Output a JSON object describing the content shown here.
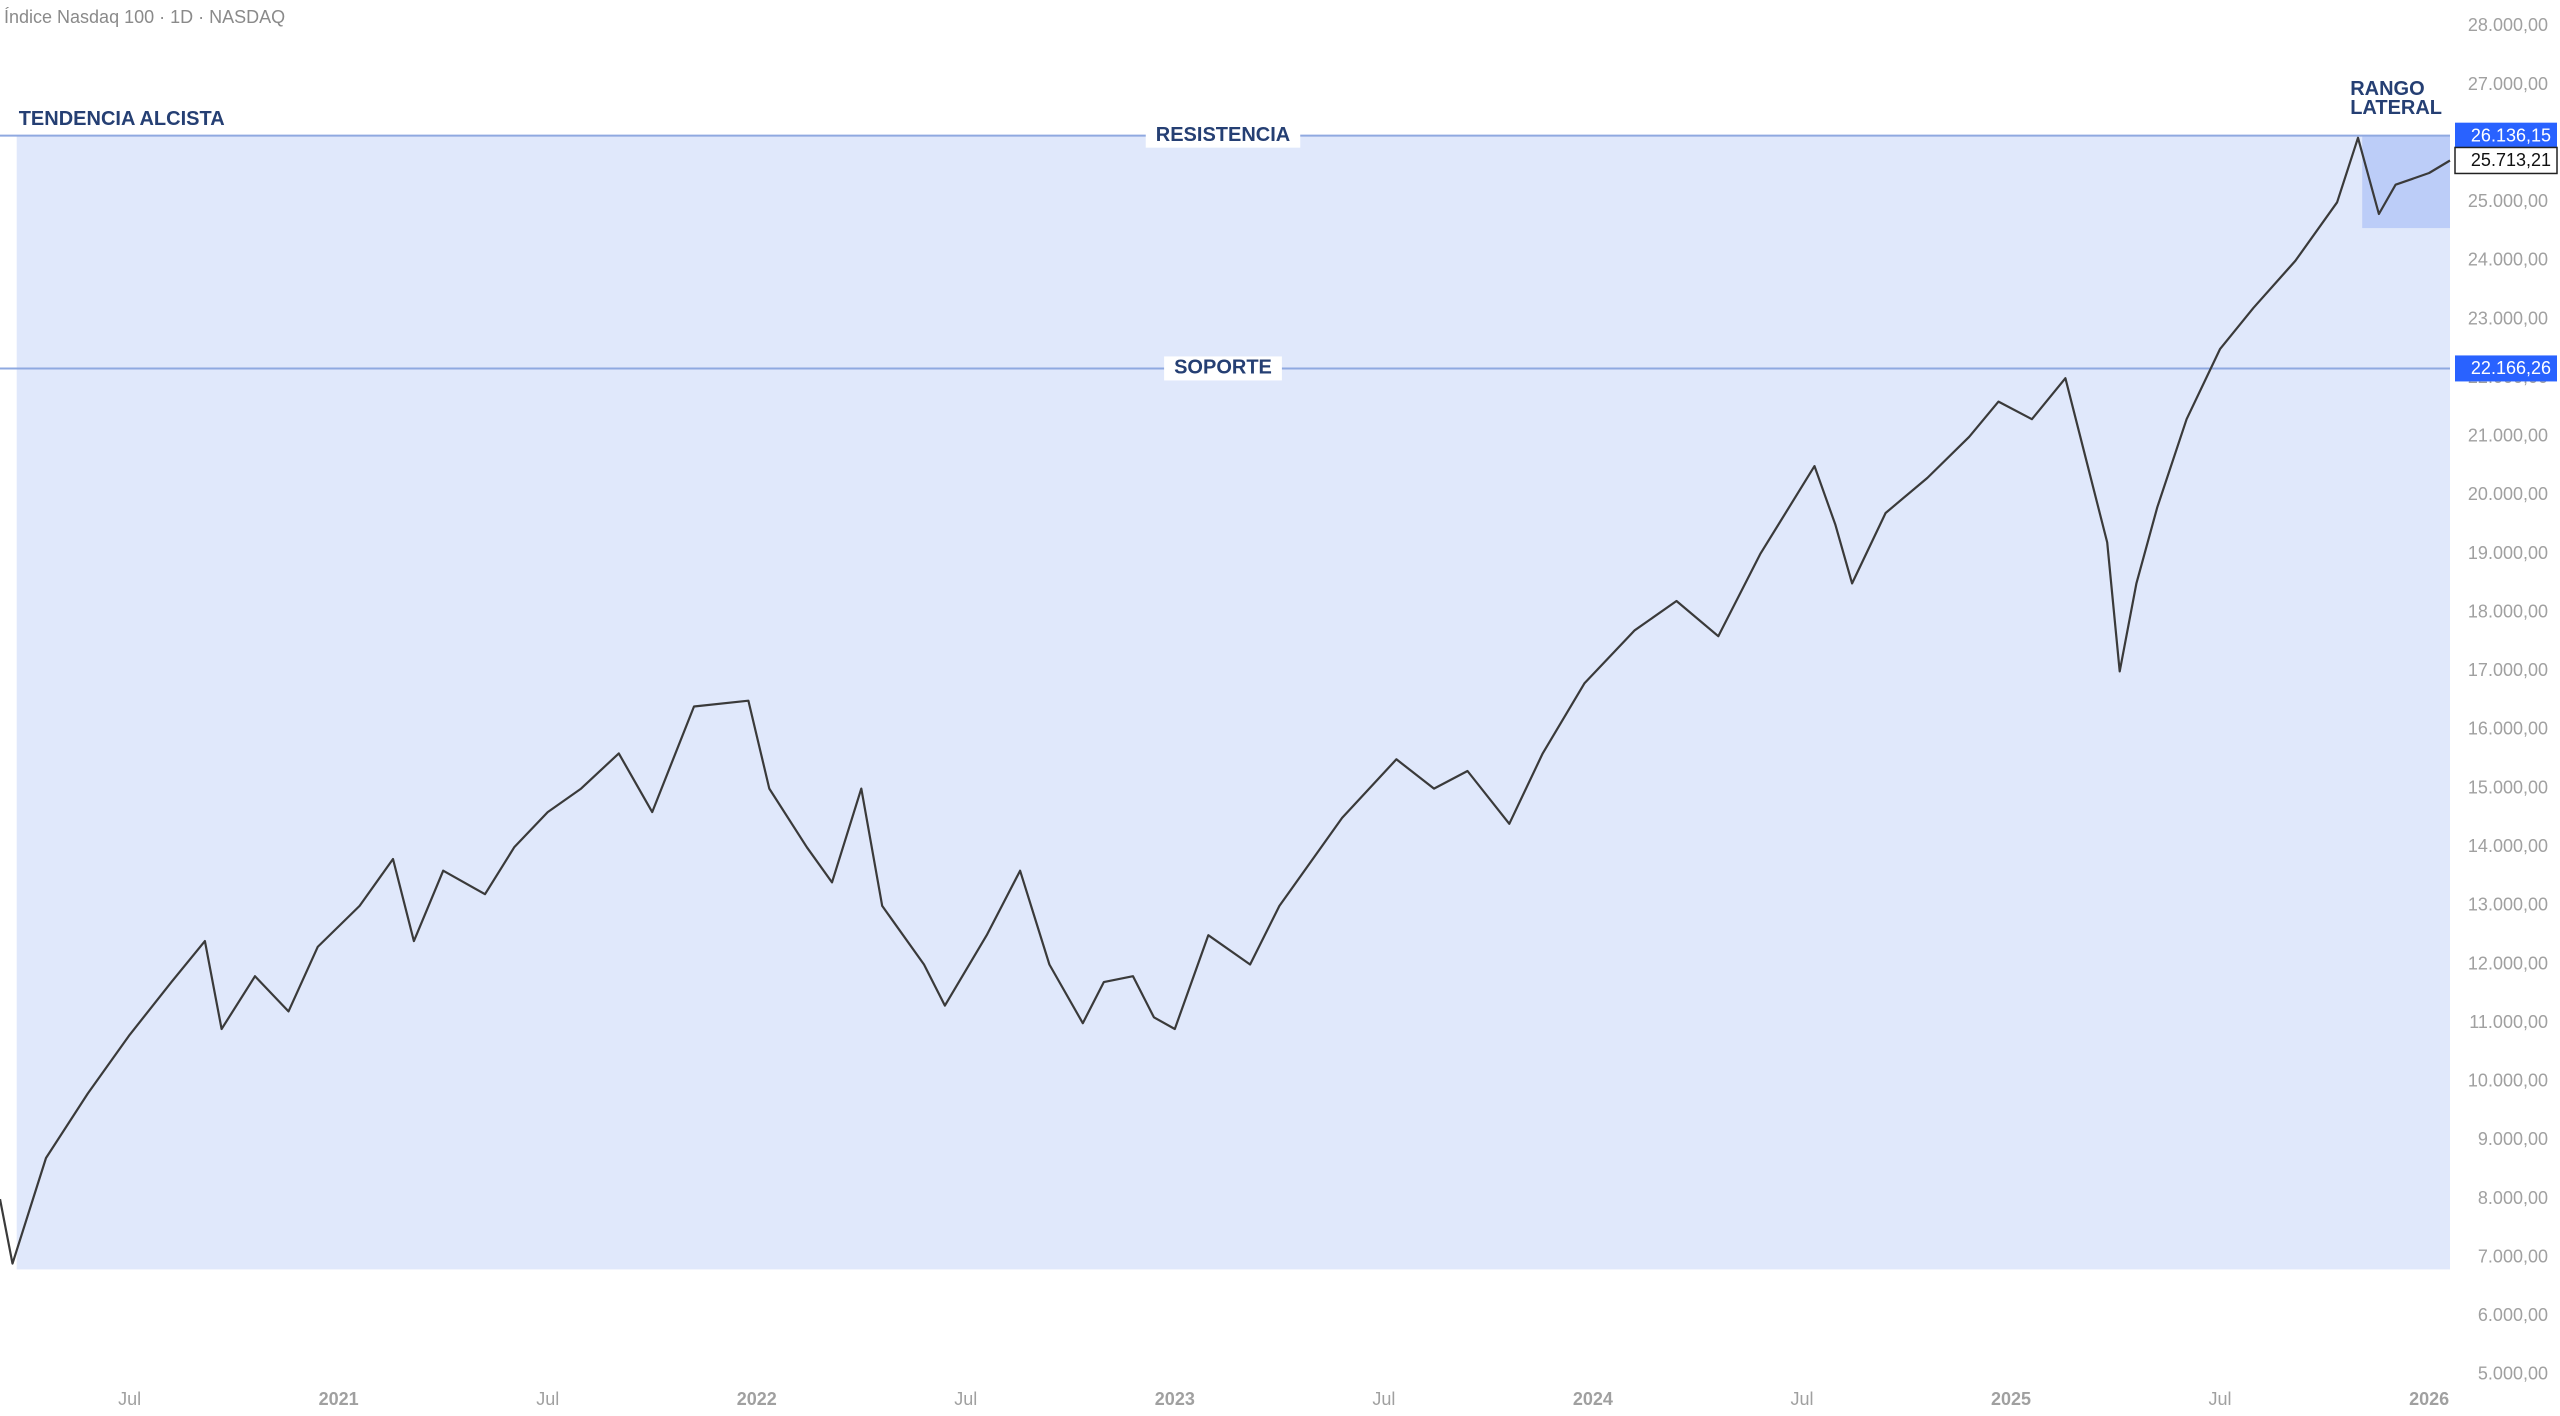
{
  "chart_data": {
    "type": "line",
    "title": "Índice Nasdaq 100 · 1D · NASDAQ",
    "xlim": [
      2020.19,
      2026.05
    ],
    "ylim": [
      4300,
      28450
    ],
    "xticks": [
      {
        "value": 2020.5,
        "label": "Jul"
      },
      {
        "value": 2021,
        "label": "2021"
      },
      {
        "value": 2021.5,
        "label": "Jul"
      },
      {
        "value": 2022,
        "label": "2022"
      },
      {
        "value": 2022.5,
        "label": "Jul"
      },
      {
        "value": 2023,
        "label": "2023"
      },
      {
        "value": 2023.5,
        "label": "Jul"
      },
      {
        "value": 2024,
        "label": "2024"
      },
      {
        "value": 2024.5,
        "label": "Jul"
      },
      {
        "value": 2025,
        "label": "2025"
      },
      {
        "value": 2025.5,
        "label": "Jul"
      },
      {
        "value": 2026,
        "label": "2026"
      }
    ],
    "yticks": [
      {
        "value": 5000,
        "label": "5.000,00"
      },
      {
        "value": 6000,
        "label": "6.000,00"
      },
      {
        "value": 7000,
        "label": "7.000,00"
      },
      {
        "value": 8000,
        "label": "8.000,00"
      },
      {
        "value": 9000,
        "label": "9.000,00"
      },
      {
        "value": 10000,
        "label": "10.000,00"
      },
      {
        "value": 11000,
        "label": "11.000,00"
      },
      {
        "value": 12000,
        "label": "12.000,00"
      },
      {
        "value": 13000,
        "label": "13.000,00"
      },
      {
        "value": 14000,
        "label": "14.000,00"
      },
      {
        "value": 15000,
        "label": "15.000,00"
      },
      {
        "value": 16000,
        "label": "16.000,00"
      },
      {
        "value": 17000,
        "label": "17.000,00"
      },
      {
        "value": 18000,
        "label": "18.000,00"
      },
      {
        "value": 19000,
        "label": "19.000,00"
      },
      {
        "value": 20000,
        "label": "20.000,00"
      },
      {
        "value": 21000,
        "label": "21.000,00"
      },
      {
        "value": 22000,
        "label": "22.000,00"
      },
      {
        "value": 23000,
        "label": "23.000,00"
      },
      {
        "value": 24000,
        "label": "24.000,00"
      },
      {
        "value": 25000,
        "label": "25.000,00"
      },
      {
        "value": 26000,
        "label": "26.000,00"
      },
      {
        "value": 27000,
        "label": "27.000,00"
      },
      {
        "value": 28000,
        "label": "28.000,00"
      }
    ],
    "series": [
      {
        "name": "Índice Nasdaq 100",
        "color": "#3a3a3a",
        "x": [
          2020.19,
          2020.22,
          2020.3,
          2020.4,
          2020.5,
          2020.6,
          2020.68,
          2020.72,
          2020.8,
          2020.88,
          2020.95,
          2021.05,
          2021.13,
          2021.18,
          2021.25,
          2021.35,
          2021.42,
          2021.5,
          2021.58,
          2021.67,
          2021.75,
          2021.85,
          2021.98,
          2022.03,
          2022.12,
          2022.18,
          2022.25,
          2022.3,
          2022.4,
          2022.45,
          2022.55,
          2022.63,
          2022.7,
          2022.78,
          2022.83,
          2022.9,
          2022.95,
          2023.0,
          2023.08,
          2023.18,
          2023.25,
          2023.4,
          2023.53,
          2023.62,
          2023.7,
          2023.8,
          2023.88,
          2023.98,
          2024.1,
          2024.2,
          2024.3,
          2024.4,
          2024.53,
          2024.58,
          2024.62,
          2024.7,
          2024.8,
          2024.9,
          2024.97,
          2025.05,
          2025.13,
          2025.18,
          2025.23,
          2025.26,
          2025.3,
          2025.35,
          2025.42,
          2025.5,
          2025.58,
          2025.68,
          2025.78,
          2025.83,
          2025.88,
          2025.92,
          2026.0,
          2026.05
        ],
        "values": [
          8000,
          6900,
          8700,
          9800,
          10800,
          11700,
          12400,
          10900,
          11800,
          11200,
          12300,
          13000,
          13800,
          12400,
          13600,
          13200,
          14000,
          14600,
          15000,
          15600,
          14600,
          16400,
          16500,
          15000,
          14000,
          13400,
          15000,
          13000,
          12000,
          11300,
          12500,
          13600,
          12000,
          11000,
          11700,
          11800,
          11100,
          10900,
          12500,
          12000,
          13000,
          14500,
          15500,
          15000,
          15300,
          14400,
          15600,
          16800,
          17700,
          18200,
          17600,
          19000,
          20500,
          19500,
          18500,
          19700,
          20300,
          21000,
          21600,
          21300,
          22000,
          20600,
          19200,
          17000,
          18500,
          19800,
          21300,
          22500,
          23200,
          24000,
          25000,
          26100,
          24800,
          25300,
          25500,
          25713.21
        ]
      }
    ],
    "levels": [
      {
        "name": "RESISTENCIA",
        "value": 26136.15,
        "label": "26.136,15"
      },
      {
        "name": "SOPORTE",
        "value": 22166.26,
        "label": "22.166,26"
      }
    ],
    "last_price": {
      "value": 25713.21,
      "label": "25.713,21"
    },
    "trend_box": {
      "label": "TENDENCIA ALCISTA",
      "x": [
        2020.23,
        2026.05
      ],
      "y": [
        6800,
        26136.15
      ]
    },
    "range_box": {
      "label_lines": [
        "RANGO",
        "LATERAL"
      ],
      "x": [
        2025.84,
        2026.05
      ],
      "y": [
        24560,
        26136.15
      ]
    }
  }
}
